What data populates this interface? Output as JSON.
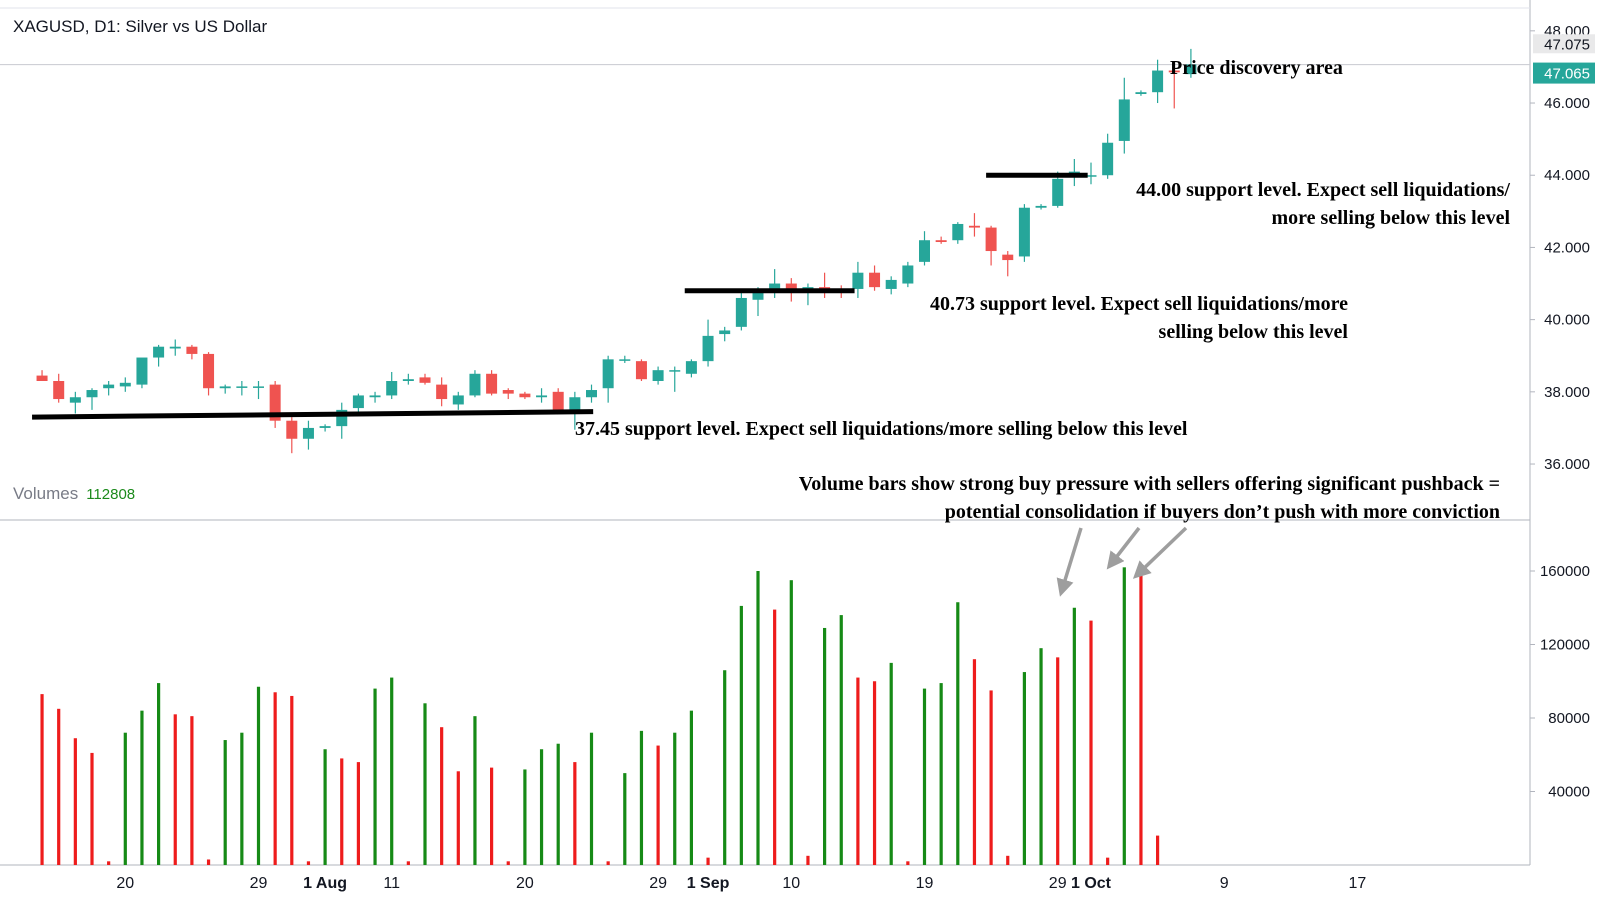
{
  "header": {
    "title": "XAGUSD, D1: Silver vs US Dollar"
  },
  "volumes_legend": {
    "label": "Volumes",
    "value": "112808"
  },
  "colors": {
    "up": "#26a69a",
    "down": "#ef5350",
    "vol_up": "#168a16",
    "vol_down": "#ee1c1c",
    "axis_text": "#131722",
    "grid": "#e0e3eb",
    "price_badge": "#26a69a",
    "hi_badge": "#e9e9ea"
  },
  "chart_data": [
    {
      "type": "candlestick",
      "title": "XAGUSD, D1: Silver vs US Dollar",
      "ylim": [
        35.2,
        48.3
      ],
      "y_ticks": [
        "48.000",
        "46.000",
        "44.000",
        "42.000",
        "40.000",
        "38.000",
        "36.000"
      ],
      "price_labels": {
        "high": "47.075",
        "last": "47.065"
      },
      "x_ticks": [
        {
          "label": "20",
          "x": 2
        },
        {
          "label": "29",
          "x": 10
        },
        {
          "label": "1 Aug",
          "x": 14
        },
        {
          "label": "11",
          "x": 18
        },
        {
          "label": "20",
          "x": 26
        },
        {
          "label": "29",
          "x": 34
        },
        {
          "label": "1 Sep",
          "x": 37
        },
        {
          "label": "10",
          "x": 42
        },
        {
          "label": "19",
          "x": 50
        },
        {
          "label": "29",
          "x": 58
        },
        {
          "label": "1 Oct",
          "x": 60
        },
        {
          "label": "9",
          "x": 68
        },
        {
          "label": "17",
          "x": 76
        }
      ],
      "candles": [
        {
          "x": -3,
          "o": 38.45,
          "h": 38.6,
          "l": 38.3,
          "c": 38.3
        },
        {
          "x": -2,
          "o": 38.3,
          "h": 38.5,
          "l": 37.7,
          "c": 37.8
        },
        {
          "x": -1,
          "o": 37.7,
          "h": 38.0,
          "l": 37.4,
          "c": 37.85
        },
        {
          "x": 0,
          "o": 37.85,
          "h": 38.1,
          "l": 37.5,
          "c": 38.05
        },
        {
          "x": 1,
          "o": 38.1,
          "h": 38.3,
          "l": 37.9,
          "c": 38.2
        },
        {
          "x": 2,
          "o": 38.15,
          "h": 38.4,
          "l": 38.0,
          "c": 38.25
        },
        {
          "x": 3,
          "o": 38.2,
          "h": 38.9,
          "l": 38.1,
          "c": 38.95
        },
        {
          "x": 4,
          "o": 38.95,
          "h": 39.3,
          "l": 38.7,
          "c": 39.25
        },
        {
          "x": 5,
          "o": 39.2,
          "h": 39.45,
          "l": 39.0,
          "c": 39.25
        },
        {
          "x": 6,
          "o": 39.25,
          "h": 39.3,
          "l": 38.9,
          "c": 39.05
        },
        {
          "x": 7,
          "o": 39.05,
          "h": 39.1,
          "l": 37.9,
          "c": 38.1
        },
        {
          "x": 8,
          "o": 38.1,
          "h": 38.2,
          "l": 37.95,
          "c": 38.15
        },
        {
          "x": 9,
          "o": 38.15,
          "h": 38.3,
          "l": 37.9,
          "c": 38.15
        },
        {
          "x": 10,
          "o": 38.15,
          "h": 38.3,
          "l": 37.8,
          "c": 38.15
        },
        {
          "x": 11,
          "o": 38.2,
          "h": 38.3,
          "l": 37.0,
          "c": 37.2
        },
        {
          "x": 12,
          "o": 37.2,
          "h": 37.3,
          "l": 36.3,
          "c": 36.7
        },
        {
          "x": 13,
          "o": 36.7,
          "h": 37.2,
          "l": 36.4,
          "c": 37.0
        },
        {
          "x": 14,
          "o": 37.0,
          "h": 37.1,
          "l": 36.9,
          "c": 37.05
        },
        {
          "x": 15,
          "o": 37.05,
          "h": 37.7,
          "l": 36.7,
          "c": 37.5
        },
        {
          "x": 16,
          "o": 37.55,
          "h": 37.95,
          "l": 37.35,
          "c": 37.9
        },
        {
          "x": 17,
          "o": 37.85,
          "h": 38.0,
          "l": 37.7,
          "c": 37.9
        },
        {
          "x": 18,
          "o": 37.9,
          "h": 38.55,
          "l": 37.8,
          "c": 38.3
        },
        {
          "x": 19,
          "o": 38.3,
          "h": 38.5,
          "l": 38.2,
          "c": 38.35
        },
        {
          "x": 20,
          "o": 38.4,
          "h": 38.5,
          "l": 38.2,
          "c": 38.25
        },
        {
          "x": 21,
          "o": 38.2,
          "h": 38.4,
          "l": 37.6,
          "c": 37.8
        },
        {
          "x": 22,
          "o": 37.65,
          "h": 38.0,
          "l": 37.5,
          "c": 37.9
        },
        {
          "x": 23,
          "o": 37.9,
          "h": 38.6,
          "l": 37.85,
          "c": 38.5
        },
        {
          "x": 24,
          "o": 38.5,
          "h": 38.6,
          "l": 37.9,
          "c": 37.95
        },
        {
          "x": 25,
          "o": 38.05,
          "h": 38.1,
          "l": 37.8,
          "c": 37.95
        },
        {
          "x": 26,
          "o": 37.95,
          "h": 38.0,
          "l": 37.8,
          "c": 37.85
        },
        {
          "x": 27,
          "o": 37.85,
          "h": 38.1,
          "l": 37.7,
          "c": 37.9
        },
        {
          "x": 28,
          "o": 38.0,
          "h": 38.1,
          "l": 37.5,
          "c": 37.45
        },
        {
          "x": 29,
          "o": 37.45,
          "h": 38.0,
          "l": 36.95,
          "c": 37.85
        },
        {
          "x": 30,
          "o": 37.85,
          "h": 38.2,
          "l": 37.7,
          "c": 38.05
        },
        {
          "x": 31,
          "o": 38.1,
          "h": 39.0,
          "l": 37.7,
          "c": 38.9
        },
        {
          "x": 32,
          "o": 38.9,
          "h": 39.0,
          "l": 38.8,
          "c": 38.9
        },
        {
          "x": 33,
          "o": 38.85,
          "h": 38.9,
          "l": 38.3,
          "c": 38.35
        },
        {
          "x": 34,
          "o": 38.3,
          "h": 38.7,
          "l": 38.2,
          "c": 38.6
        },
        {
          "x": 35,
          "o": 38.6,
          "h": 38.7,
          "l": 38.0,
          "c": 38.6
        },
        {
          "x": 36,
          "o": 38.5,
          "h": 38.9,
          "l": 38.4,
          "c": 38.85
        },
        {
          "x": 37,
          "o": 38.85,
          "h": 40.0,
          "l": 38.7,
          "c": 39.55
        },
        {
          "x": 38,
          "o": 39.6,
          "h": 39.8,
          "l": 39.4,
          "c": 39.7
        },
        {
          "x": 39,
          "o": 39.8,
          "h": 40.8,
          "l": 39.7,
          "c": 40.6
        },
        {
          "x": 40,
          "o": 40.55,
          "h": 40.9,
          "l": 40.1,
          "c": 40.75
        },
        {
          "x": 41,
          "o": 40.75,
          "h": 41.4,
          "l": 40.6,
          "c": 41.0
        },
        {
          "x": 42,
          "o": 41.0,
          "h": 41.15,
          "l": 40.5,
          "c": 40.8
        },
        {
          "x": 43,
          "o": 40.8,
          "h": 41.0,
          "l": 40.4,
          "c": 40.9
        },
        {
          "x": 44,
          "o": 40.9,
          "h": 41.3,
          "l": 40.6,
          "c": 40.85
        },
        {
          "x": 45,
          "o": 40.85,
          "h": 40.95,
          "l": 40.6,
          "c": 40.8
        },
        {
          "x": 46,
          "o": 40.85,
          "h": 41.6,
          "l": 40.6,
          "c": 41.3
        },
        {
          "x": 47,
          "o": 41.3,
          "h": 41.5,
          "l": 40.8,
          "c": 40.9
        },
        {
          "x": 48,
          "o": 40.85,
          "h": 41.2,
          "l": 40.7,
          "c": 41.1
        },
        {
          "x": 49,
          "o": 41.0,
          "h": 41.6,
          "l": 40.9,
          "c": 41.5
        },
        {
          "x": 50,
          "o": 41.6,
          "h": 42.45,
          "l": 41.5,
          "c": 42.2
        },
        {
          "x": 51,
          "o": 42.2,
          "h": 42.3,
          "l": 42.1,
          "c": 42.15
        },
        {
          "x": 52,
          "o": 42.2,
          "h": 42.7,
          "l": 42.1,
          "c": 42.65
        },
        {
          "x": 53,
          "o": 42.6,
          "h": 42.95,
          "l": 42.3,
          "c": 42.55
        },
        {
          "x": 54,
          "o": 42.55,
          "h": 42.6,
          "l": 41.5,
          "c": 41.9
        },
        {
          "x": 55,
          "o": 41.8,
          "h": 41.9,
          "l": 41.2,
          "c": 41.65
        },
        {
          "x": 56,
          "o": 41.75,
          "h": 43.2,
          "l": 41.6,
          "c": 43.1
        },
        {
          "x": 57,
          "o": 43.1,
          "h": 43.2,
          "l": 43.05,
          "c": 43.15
        },
        {
          "x": 58,
          "o": 43.15,
          "h": 44.1,
          "l": 43.1,
          "c": 43.9
        },
        {
          "x": 59,
          "o": 43.95,
          "h": 44.45,
          "l": 43.7,
          "c": 44.1
        },
        {
          "x": 60,
          "o": 44.0,
          "h": 44.35,
          "l": 43.75,
          "c": 44.0
        },
        {
          "x": 61,
          "o": 44.0,
          "h": 45.15,
          "l": 43.9,
          "c": 44.9
        },
        {
          "x": 62,
          "o": 44.95,
          "h": 46.7,
          "l": 44.6,
          "c": 46.1
        },
        {
          "x": 63,
          "o": 46.25,
          "h": 46.35,
          "l": 46.2,
          "c": 46.3
        },
        {
          "x": 64,
          "o": 46.3,
          "h": 47.2,
          "l": 46.0,
          "c": 46.9
        },
        {
          "x": 65,
          "o": 46.9,
          "h": 47.1,
          "l": 45.85,
          "c": 46.85
        },
        {
          "x": 66,
          "o": 46.8,
          "h": 47.5,
          "l": 46.7,
          "c": 47.07
        }
      ]
    },
    {
      "type": "bar",
      "title": "Volumes",
      "ylim": [
        0,
        190000
      ],
      "y_ticks": [
        "160000",
        "120000",
        "80000",
        "40000"
      ],
      "bars": [
        {
          "x": -3,
          "v": 93000,
          "d": "down"
        },
        {
          "x": -2,
          "v": 85000,
          "d": "down"
        },
        {
          "x": -1,
          "v": 69000,
          "d": "down"
        },
        {
          "x": 0,
          "v": 61000,
          "d": "down"
        },
        {
          "x": 1,
          "v": 2000,
          "d": "down"
        },
        {
          "x": 2,
          "v": 72000,
          "d": "up"
        },
        {
          "x": 3,
          "v": 84000,
          "d": "up"
        },
        {
          "x": 4,
          "v": 99000,
          "d": "up"
        },
        {
          "x": 5,
          "v": 82000,
          "d": "down"
        },
        {
          "x": 6,
          "v": 81000,
          "d": "down"
        },
        {
          "x": 7,
          "v": 3000,
          "d": "down"
        },
        {
          "x": 8,
          "v": 68000,
          "d": "up"
        },
        {
          "x": 9,
          "v": 72000,
          "d": "up"
        },
        {
          "x": 10,
          "v": 97000,
          "d": "up"
        },
        {
          "x": 11,
          "v": 94000,
          "d": "down"
        },
        {
          "x": 12,
          "v": 92000,
          "d": "down"
        },
        {
          "x": 13,
          "v": 2000,
          "d": "down"
        },
        {
          "x": 14,
          "v": 63000,
          "d": "up"
        },
        {
          "x": 15,
          "v": 58000,
          "d": "down"
        },
        {
          "x": 16,
          "v": 56000,
          "d": "down"
        },
        {
          "x": 17,
          "v": 96000,
          "d": "up"
        },
        {
          "x": 18,
          "v": 102000,
          "d": "up"
        },
        {
          "x": 19,
          "v": 2000,
          "d": "down"
        },
        {
          "x": 20,
          "v": 88000,
          "d": "up"
        },
        {
          "x": 21,
          "v": 75000,
          "d": "down"
        },
        {
          "x": 22,
          "v": 51000,
          "d": "down"
        },
        {
          "x": 23,
          "v": 81000,
          "d": "up"
        },
        {
          "x": 24,
          "v": 53000,
          "d": "down"
        },
        {
          "x": 25,
          "v": 2000,
          "d": "down"
        },
        {
          "x": 26,
          "v": 52000,
          "d": "up"
        },
        {
          "x": 27,
          "v": 63000,
          "d": "up"
        },
        {
          "x": 28,
          "v": 66000,
          "d": "up"
        },
        {
          "x": 29,
          "v": 56000,
          "d": "down"
        },
        {
          "x": 30,
          "v": 72000,
          "d": "up"
        },
        {
          "x": 31,
          "v": 2000,
          "d": "down"
        },
        {
          "x": 32,
          "v": 50000,
          "d": "up"
        },
        {
          "x": 33,
          "v": 73000,
          "d": "up"
        },
        {
          "x": 34,
          "v": 65000,
          "d": "down"
        },
        {
          "x": 35,
          "v": 72000,
          "d": "up"
        },
        {
          "x": 36,
          "v": 84000,
          "d": "up"
        },
        {
          "x": 37,
          "v": 4000,
          "d": "down"
        },
        {
          "x": 38,
          "v": 106000,
          "d": "up"
        },
        {
          "x": 39,
          "v": 141000,
          "d": "up"
        },
        {
          "x": 40,
          "v": 160000,
          "d": "up"
        },
        {
          "x": 41,
          "v": 139000,
          "d": "down"
        },
        {
          "x": 42,
          "v": 155000,
          "d": "up"
        },
        {
          "x": 43,
          "v": 5000,
          "d": "down"
        },
        {
          "x": 44,
          "v": 129000,
          "d": "up"
        },
        {
          "x": 45,
          "v": 136000,
          "d": "up"
        },
        {
          "x": 46,
          "v": 102000,
          "d": "down"
        },
        {
          "x": 47,
          "v": 100000,
          "d": "down"
        },
        {
          "x": 48,
          "v": 110000,
          "d": "up"
        },
        {
          "x": 49,
          "v": 2000,
          "d": "down"
        },
        {
          "x": 50,
          "v": 96000,
          "d": "up"
        },
        {
          "x": 51,
          "v": 99000,
          "d": "up"
        },
        {
          "x": 52,
          "v": 143000,
          "d": "up"
        },
        {
          "x": 53,
          "v": 112000,
          "d": "down"
        },
        {
          "x": 54,
          "v": 95000,
          "d": "down"
        },
        {
          "x": 55,
          "v": 5000,
          "d": "down"
        },
        {
          "x": 56,
          "v": 105000,
          "d": "up"
        },
        {
          "x": 57,
          "v": 118000,
          "d": "up"
        },
        {
          "x": 58,
          "v": 113000,
          "d": "down"
        },
        {
          "x": 59,
          "v": 140000,
          "d": "up"
        },
        {
          "x": 60,
          "v": 133000,
          "d": "down"
        },
        {
          "x": 61,
          "v": 4000,
          "d": "down"
        },
        {
          "x": 62,
          "v": 162000,
          "d": "up"
        },
        {
          "x": 63,
          "v": 161000,
          "d": "down"
        },
        {
          "x": 64,
          "v": 16000,
          "d": "down"
        }
      ]
    }
  ],
  "annotations": {
    "price_discovery": "Price discovery area",
    "support_44": [
      "44.00 support level. Expect sell liquidations/",
      "more selling below this level"
    ],
    "support_4073": [
      "40.73 support level. Expect sell liquidations/more",
      "selling below this level"
    ],
    "support_3745": "37.45 support level. Expect sell liquidations/more selling below this level",
    "volume_note": [
      "Volume bars show strong buy pressure with sellers offering significant pushback =",
      "potential consolidation if buyers don’t push with more conviction"
    ]
  },
  "support_lines": [
    {
      "name": "support-line-44",
      "price_start": 44.0,
      "price_end": 44.0,
      "x_start": 53.7,
      "x_end": 59.8
    },
    {
      "name": "support-line-4073",
      "price_start": 40.8,
      "price_end": 40.8,
      "x_start": 35.6,
      "x_end": 45.8
    },
    {
      "name": "support-line-3745",
      "price_start": 37.3,
      "price_end": 37.45,
      "x_start": -3.6,
      "x_end": 30.1
    }
  ]
}
